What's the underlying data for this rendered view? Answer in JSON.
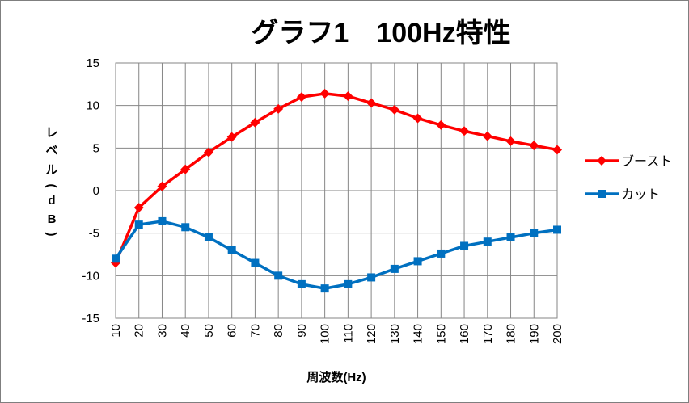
{
  "chart_data": {
    "type": "line",
    "title": "グラフ1　100Hz特性",
    "xlabel": "周波数(Hz)",
    "ylabel": "レベル(dB)",
    "ylabel_chars": [
      "レ",
      "ベ",
      "ル",
      "(",
      "d",
      "B",
      ")"
    ],
    "categories": [
      "10",
      "20",
      "30",
      "40",
      "50",
      "60",
      "70",
      "80",
      "90",
      "100",
      "110",
      "120",
      "130",
      "140",
      "150",
      "160",
      "170",
      "180",
      "190",
      "200"
    ],
    "ylim": [
      -15,
      15
    ],
    "yticks": [
      "15",
      "10",
      "5",
      "0",
      "-5",
      "-10",
      "-15"
    ],
    "ytick_values": [
      15,
      10,
      5,
      0,
      -5,
      -10,
      -15
    ],
    "grid": true,
    "legend_position": "right",
    "series": [
      {
        "name": "ブースト",
        "color": "#ff0000",
        "marker": "diamond",
        "values": [
          -8.5,
          -2,
          0.5,
          2.5,
          4.5,
          6.3,
          8.0,
          9.6,
          11.0,
          11.4,
          11.1,
          10.3,
          9.5,
          8.5,
          7.7,
          7.0,
          6.4,
          5.8,
          5.3,
          4.8
        ]
      },
      {
        "name": "カット",
        "color": "#0070c0",
        "marker": "square",
        "values": [
          -8,
          -4,
          -3.6,
          -4.3,
          -5.5,
          -7.0,
          -8.5,
          -10.0,
          -11.0,
          -11.5,
          -11.0,
          -10.2,
          -9.2,
          -8.3,
          -7.4,
          -6.5,
          -6.0,
          -5.5,
          -5.0,
          -4.6
        ]
      }
    ]
  }
}
